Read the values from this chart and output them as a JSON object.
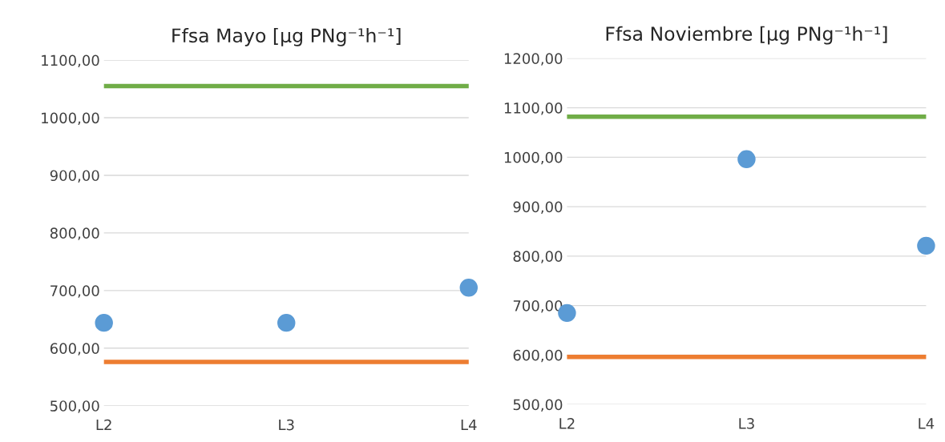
{
  "chart_data": [
    {
      "type": "scatter",
      "title": "Ffsa Mayo [µg PNg⁻¹h⁻¹]",
      "categories": [
        "L2",
        "L3",
        "L4"
      ],
      "ylim": [
        500,
        1100
      ],
      "yticks": [
        {
          "value": 500,
          "label": "500,00"
        },
        {
          "value": 600,
          "label": "600,00"
        },
        {
          "value": 700,
          "label": "700,00"
        },
        {
          "value": 800,
          "label": "800,00"
        },
        {
          "value": 900,
          "label": "900,00"
        },
        {
          "value": 1000,
          "label": "1000,00"
        },
        {
          "value": 1100,
          "label": "1100,00"
        }
      ],
      "grid": "y",
      "legend": false,
      "series": [
        {
          "color": "#5b9bd5",
          "marker": "circle",
          "values": [
            644,
            644,
            705
          ]
        },
        {
          "type": "line",
          "marker": "none",
          "color": "#70ad47",
          "values": [
            1055,
            1055,
            1055
          ]
        },
        {
          "type": "line",
          "marker": "none",
          "color": "#ed7d31",
          "values": [
            576,
            576,
            576
          ]
        }
      ]
    },
    {
      "type": "scatter",
      "title": "Ffsa Noviembre [µg PNg⁻¹h⁻¹]",
      "categories": [
        "L2",
        "L3",
        "L4"
      ],
      "ylim": [
        500,
        1200
      ],
      "yticks": [
        {
          "value": 500,
          "label": "500,00"
        },
        {
          "value": 600,
          "label": "600,00"
        },
        {
          "value": 700,
          "label": "700,00"
        },
        {
          "value": 800,
          "label": "800,00"
        },
        {
          "value": 900,
          "label": "900,00"
        },
        {
          "value": 1000,
          "label": "1000,00"
        },
        {
          "value": 1100,
          "label": "1100,00"
        },
        {
          "value": 1200,
          "label": "1200,00"
        }
      ],
      "grid": "y",
      "legend": false,
      "series": [
        {
          "color": "#5b9bd5",
          "marker": "circle",
          "values": [
            685,
            996,
            821
          ]
        },
        {
          "type": "line",
          "marker": "none",
          "color": "#70ad47",
          "values": [
            1082,
            1082,
            1082
          ]
        },
        {
          "type": "line",
          "marker": "none",
          "color": "#ed7d31",
          "values": [
            596,
            596,
            596
          ]
        }
      ]
    }
  ]
}
